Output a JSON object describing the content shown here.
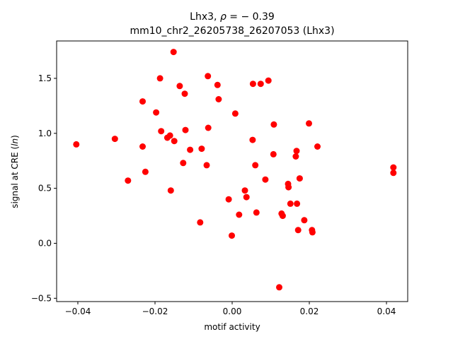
{
  "chart_data": {
    "type": "scatter",
    "title_line1_prefix": "Lhx3, ",
    "title_rho_symbol": "ρ",
    "title_rho_value": " = − 0.39",
    "title_line2": "mm10_chr2_26205738_26207053 (Lhx3)",
    "xlabel": "motif activity",
    "ylabel_prefix": "signal at CRE (",
    "ylabel_italic": "ln",
    "ylabel_suffix": ")",
    "xlim": [
      -0.0455,
      0.0455
    ],
    "ylim": [
      -0.53,
      1.84
    ],
    "xticks": [
      -0.04,
      -0.02,
      0.0,
      0.02,
      0.04
    ],
    "xtick_labels": [
      "−0.04",
      "−0.02",
      "0.00",
      "0.02",
      "0.04"
    ],
    "yticks": [
      -0.5,
      0.0,
      0.5,
      1.0,
      1.5
    ],
    "ytick_labels": [
      "−0.5",
      "0.0",
      "0.5",
      "1.0",
      "1.5"
    ],
    "marker_color": "#ff0000",
    "grid": false,
    "x": [
      -0.0404,
      -0.0304,
      -0.027,
      -0.0232,
      -0.0232,
      -0.0225,
      -0.0197,
      -0.0187,
      -0.0184,
      -0.0168,
      -0.0161,
      -0.0159,
      -0.0152,
      -0.015,
      -0.0136,
      -0.0127,
      -0.0123,
      -0.0121,
      -0.0109,
      -0.0083,
      -0.0079,
      -0.0066,
      -0.0063,
      -0.0062,
      -0.0038,
      -0.0035,
      -0.0009,
      -0.0001,
      0.0008,
      0.0018,
      0.0033,
      0.0037,
      0.0053,
      0.0054,
      0.006,
      0.0063,
      0.0074,
      0.0086,
      0.0094,
      0.0107,
      0.0108,
      0.0122,
      0.0128,
      0.0131,
      0.0145,
      0.0146,
      0.0151,
      0.0165,
      0.0167,
      0.0168,
      0.0171,
      0.0175,
      0.0187,
      0.0199,
      0.0207,
      0.0208,
      0.0221,
      0.0418,
      0.0418
    ],
    "y": [
      0.9,
      0.95,
      0.57,
      1.29,
      0.88,
      0.65,
      1.19,
      1.5,
      1.02,
      0.96,
      0.98,
      0.48,
      1.74,
      0.93,
      1.43,
      0.73,
      1.36,
      1.03,
      0.85,
      0.19,
      0.86,
      0.71,
      1.52,
      1.05,
      1.44,
      1.31,
      0.4,
      0.07,
      1.18,
      0.26,
      0.48,
      0.42,
      0.94,
      1.45,
      0.71,
      0.28,
      1.45,
      0.58,
      1.48,
      0.81,
      1.08,
      -0.4,
      0.27,
      0.25,
      0.54,
      0.51,
      0.36,
      0.79,
      0.84,
      0.36,
      0.12,
      0.59,
      0.21,
      1.09,
      0.12,
      0.1,
      0.88,
      0.69,
      0.64
    ]
  }
}
